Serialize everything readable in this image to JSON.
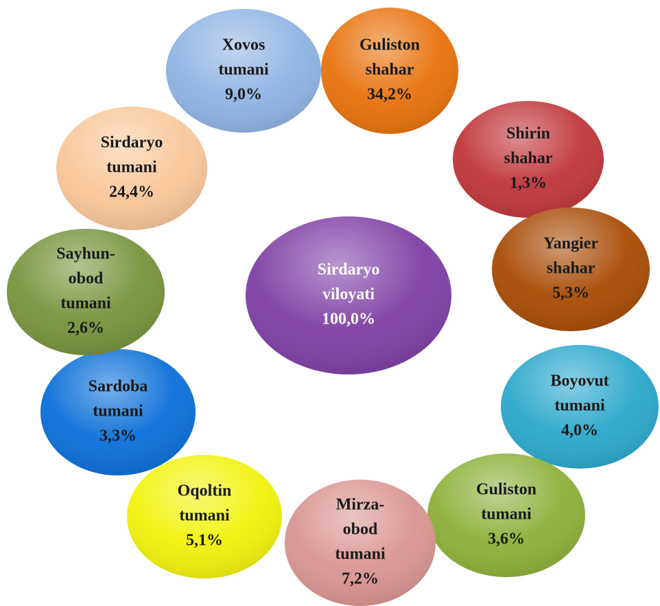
{
  "center": {
    "lines": [
      "Sirdaryo",
      "viloyati"
    ],
    "value": "100,0%"
  },
  "nodes": [
    {
      "lines": [
        "Xovos",
        "tumani"
      ],
      "value": "9,0%"
    },
    {
      "lines": [
        "Guliston",
        "shahar"
      ],
      "value": "34,2%"
    },
    {
      "lines": [
        "Shirin",
        "shahar"
      ],
      "value": "1,3%"
    },
    {
      "lines": [
        "Yangier",
        "shahar"
      ],
      "value": "5,3%"
    },
    {
      "lines": [
        "Boyovut",
        "tumani"
      ],
      "value": "4,0%"
    },
    {
      "lines": [
        "Guliston",
        "tumani"
      ],
      "value": "3,6%"
    },
    {
      "lines": [
        "Mirza-",
        "obod",
        "tumani"
      ],
      "value": "7,2%"
    },
    {
      "lines": [
        "Oqoltin",
        "tumani"
      ],
      "value": "5,1%"
    },
    {
      "lines": [
        "Sardoba",
        "tumani"
      ],
      "value": "3,3%"
    },
    {
      "lines": [
        "Sayhun-",
        "obod",
        "tumani"
      ],
      "value": "2,6%"
    },
    {
      "lines": [
        "Sirdaryo",
        "tumani"
      ],
      "value": "24,4%"
    }
  ]
}
